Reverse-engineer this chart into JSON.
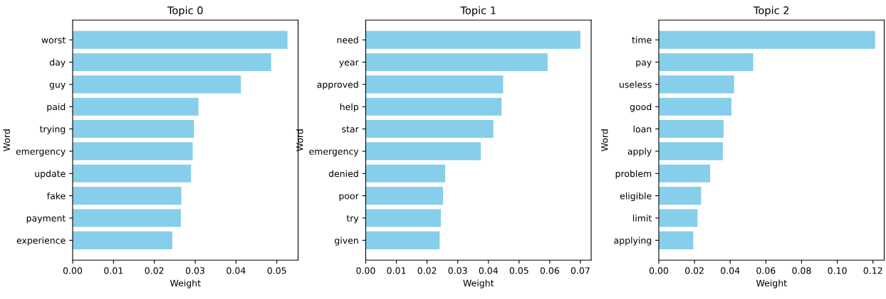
{
  "chart_data": [
    {
      "type": "bar",
      "orientation": "horizontal",
      "title": "Topic 0",
      "xlabel": "Weight",
      "ylabel": "Word",
      "color": "#87ceeb",
      "categories": [
        "worst",
        "day",
        "guy",
        "paid",
        "trying",
        "emergency",
        "update",
        "fake",
        "payment",
        "experience"
      ],
      "values": [
        0.0526,
        0.0486,
        0.0412,
        0.0308,
        0.0297,
        0.0294,
        0.029,
        0.0266,
        0.0265,
        0.0244
      ],
      "xlim": [
        0,
        0.0552
      ],
      "xticks": [
        {
          "value": 0,
          "label": "0.00"
        },
        {
          "value": 0.01,
          "label": "0.01"
        },
        {
          "value": 0.02,
          "label": "0.02"
        },
        {
          "value": 0.03,
          "label": "0.03"
        },
        {
          "value": 0.04,
          "label": "0.04"
        },
        {
          "value": 0.05,
          "label": "0.05"
        }
      ]
    },
    {
      "type": "bar",
      "orientation": "horizontal",
      "title": "Topic 1",
      "xlabel": "Weight",
      "ylabel": "Word",
      "color": "#87ceeb",
      "categories": [
        "need",
        "year",
        "approved",
        "help",
        "star",
        "emergency",
        "denied",
        "poor",
        "try",
        "given"
      ],
      "values": [
        0.07,
        0.0593,
        0.0448,
        0.0443,
        0.0416,
        0.0375,
        0.0259,
        0.0252,
        0.0245,
        0.0241
      ],
      "xlim": [
        0,
        0.0735
      ],
      "xticks": [
        {
          "value": 0,
          "label": "0.00"
        },
        {
          "value": 0.01,
          "label": "0.01"
        },
        {
          "value": 0.02,
          "label": "0.02"
        },
        {
          "value": 0.03,
          "label": "0.03"
        },
        {
          "value": 0.04,
          "label": "0.04"
        },
        {
          "value": 0.05,
          "label": "0.05"
        },
        {
          "value": 0.06,
          "label": "0.06"
        },
        {
          "value": 0.07,
          "label": "0.07"
        }
      ]
    },
    {
      "type": "bar",
      "orientation": "horizontal",
      "title": "Topic 2",
      "xlabel": "Weight",
      "ylabel": "Word",
      "color": "#87ceeb",
      "categories": [
        "time",
        "pay",
        "useless",
        "good",
        "loan",
        "apply",
        "problem",
        "eligible",
        "limit",
        "applying"
      ],
      "values": [
        0.1212,
        0.0529,
        0.0422,
        0.0407,
        0.0363,
        0.0359,
        0.0288,
        0.0237,
        0.0217,
        0.0193
      ],
      "xlim": [
        0,
        0.1263
      ],
      "xticks": [
        {
          "value": 0,
          "label": "0.00"
        },
        {
          "value": 0.02,
          "label": "0.02"
        },
        {
          "value": 0.04,
          "label": "0.04"
        },
        {
          "value": 0.06,
          "label": "0.06"
        },
        {
          "value": 0.08,
          "label": "0.08"
        },
        {
          "value": 0.1,
          "label": "0.10"
        },
        {
          "value": 0.12,
          "label": "0.12"
        }
      ]
    }
  ]
}
